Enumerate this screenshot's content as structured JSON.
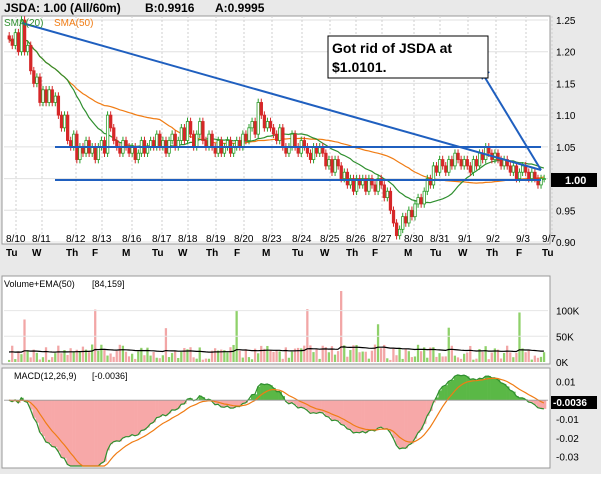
{
  "header": {
    "title": "JSDA: 1.00 (All/60m)",
    "bid": "B:0.9916",
    "ask": "A:0.9995"
  },
  "price_panel": {
    "legend_sma20": "SMA(20)",
    "legend_sma50": "SMA(50)",
    "annotation": [
      "Got rid of JSDA at",
      "$1.0101."
    ],
    "last_price_label": "1.00",
    "y_ticks": [
      "1.25",
      "1.20",
      "1.15",
      "1.10",
      "1.05",
      "1.00",
      "0.95",
      "0.90"
    ],
    "x_dates": [
      "8/10",
      "8/11",
      "8/12",
      "8/13",
      "8/16",
      "8/17",
      "8/18",
      "8/19",
      "8/20",
      "8/23",
      "8/24",
      "8/25",
      "8/26",
      "8/27",
      "8/30",
      "8/31",
      "9/1",
      "9/2",
      "9/3",
      "9/7"
    ],
    "x_days": [
      "Tu",
      "W",
      "Th",
      "F",
      "M",
      "Tu",
      "W",
      "Th",
      "F",
      "M",
      "Tu",
      "W",
      "Th",
      "F",
      "M",
      "Tu",
      "W",
      "Th",
      "F",
      "Tu"
    ]
  },
  "volume_panel": {
    "label": "Volume+EMA(50)",
    "value": "[84,159]",
    "y_ticks": [
      "100K",
      "50K",
      "0K"
    ]
  },
  "macd_panel": {
    "label": "MACD(12,26,9)",
    "value": "[-0.0036]",
    "current_label": "-0.0036",
    "y_ticks": [
      "0.01",
      "-0.01",
      "-0.02",
      "-0.03"
    ]
  },
  "colors": {
    "up": "#2ca02c",
    "down": "#d62728",
    "sma20": "#2f8f2f",
    "sma50": "#f07c14",
    "trendline": "#1f5fbf",
    "vol_up": "#8fd16a",
    "vol_down": "#f2a6a6",
    "macd_pos": "#5ab846",
    "macd_neg": "#f7a8a8"
  },
  "chart_data": [
    {
      "type": "candlestick",
      "title": "JSDA: 1.00 (All/60m)",
      "ylim": [
        0.9,
        1.25
      ],
      "ticks": [
        0.9,
        0.95,
        1.0,
        1.05,
        1.1,
        1.15,
        1.2,
        1.25
      ],
      "close": [
        1.22,
        1.21,
        1.23,
        1.2,
        1.25,
        1.2,
        1.21,
        1.17,
        1.15,
        1.16,
        1.12,
        1.14,
        1.12,
        1.14,
        1.12,
        1.13,
        1.1,
        1.08,
        1.1,
        1.06,
        1.05,
        1.07,
        1.03,
        1.05,
        1.04,
        1.06,
        1.04,
        1.05,
        1.03,
        1.05,
        1.06,
        1.04,
        1.1,
        1.08,
        1.06,
        1.05,
        1.04,
        1.06,
        1.05,
        1.04,
        1.05,
        1.03,
        1.04,
        1.06,
        1.04,
        1.05,
        1.06,
        1.05,
        1.07,
        1.05,
        1.06,
        1.04,
        1.06,
        1.07,
        1.05,
        1.06,
        1.08,
        1.06,
        1.09,
        1.07,
        1.05,
        1.07,
        1.09,
        1.06,
        1.05,
        1.07,
        1.05,
        1.04,
        1.06,
        1.04,
        1.05,
        1.06,
        1.04,
        1.05,
        1.06,
        1.05,
        1.07,
        1.06,
        1.08,
        1.09,
        1.07,
        1.12,
        1.1,
        1.08,
        1.09,
        1.08,
        1.07,
        1.06,
        1.08,
        1.05,
        1.04,
        1.05,
        1.07,
        1.05,
        1.04,
        1.06,
        1.05,
        1.04,
        1.03,
        1.05,
        1.04,
        1.05,
        1.04,
        1.02,
        1.03,
        1.01,
        1.03,
        1.02,
        1.0,
        1.01,
        0.99,
        1.0,
        0.98,
        1.0,
        0.99,
        1.0,
        0.98,
        1.0,
        0.99,
        0.98,
        1.0,
        0.99,
        0.97,
        0.98,
        0.95,
        0.93,
        0.91,
        0.92,
        0.94,
        0.93,
        0.95,
        0.94,
        0.96,
        0.97,
        0.96,
        0.98,
        1.0,
        0.99,
        1.02,
        1.01,
        1.03,
        1.02,
        1.01,
        1.03,
        1.02,
        1.04,
        1.03,
        1.02,
        1.03,
        1.02,
        1.01,
        1.03,
        1.02,
        1.04,
        1.03,
        1.05,
        1.04,
        1.03,
        1.04,
        1.03,
        1.02,
        1.03,
        1.02,
        1.01,
        1.02,
        1.0,
        1.01,
        1.02,
        1.01,
        1.0,
        1.01,
        1.0,
        0.99,
        1.0,
        1.0
      ],
      "sma20_note": "SMA(20)",
      "sma50_note": "SMA(50)"
    },
    {
      "type": "bar",
      "title": "Volume+EMA(50)",
      "ylim": [
        0,
        140000
      ],
      "ticks": [
        0,
        50000,
        100000
      ]
    },
    {
      "type": "area",
      "title": "MACD(12,26,9)",
      "ylim": [
        -0.035,
        0.015
      ],
      "ticks": [
        -0.03,
        -0.02,
        -0.01,
        0.01
      ]
    }
  ]
}
